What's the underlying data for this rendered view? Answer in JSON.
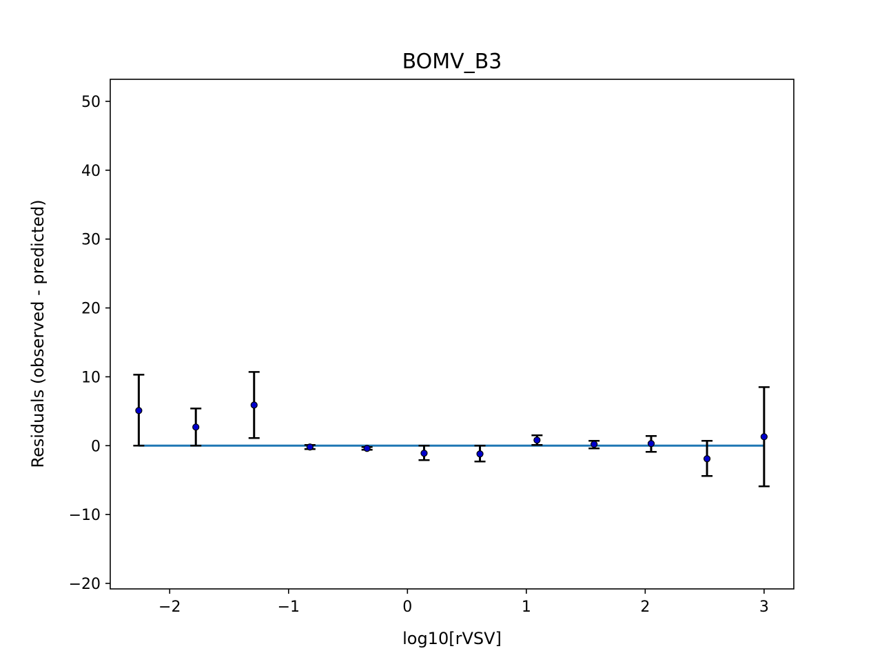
{
  "chart_data": {
    "type": "scatter",
    "title": "BOMV_B3",
    "xlabel": "log10[rVSV]",
    "ylabel": "Residuals (observed - predicted)",
    "xlim": [
      -2.5,
      3.25
    ],
    "ylim": [
      -20.8,
      53.2
    ],
    "xticks": [
      -2,
      -1,
      0,
      1,
      2,
      3
    ],
    "xtick_labels": [
      "−2",
      "−1",
      "0",
      "1",
      "2",
      "3"
    ],
    "yticks": [
      -20,
      -10,
      0,
      10,
      20,
      30,
      40,
      50
    ],
    "ytick_labels": [
      "−20",
      "−10",
      "0",
      "10",
      "20",
      "30",
      "40",
      "50"
    ],
    "grid": false,
    "points": [
      {
        "x": -2.26,
        "y": 5.1,
        "ylow": 0.0,
        "yhigh": 10.3
      },
      {
        "x": -1.78,
        "y": 2.7,
        "ylow": 0.0,
        "yhigh": 5.4
      },
      {
        "x": -1.29,
        "y": 5.9,
        "ylow": 1.1,
        "yhigh": 10.7
      },
      {
        "x": -0.82,
        "y": -0.2,
        "ylow": -0.5,
        "yhigh": 0.1
      },
      {
        "x": -0.34,
        "y": -0.4,
        "ylow": -0.6,
        "yhigh": -0.2
      },
      {
        "x": 0.14,
        "y": -1.1,
        "ylow": -2.1,
        "yhigh": 0.0
      },
      {
        "x": 0.61,
        "y": -1.2,
        "ylow": -2.3,
        "yhigh": 0.0
      },
      {
        "x": 1.09,
        "y": 0.8,
        "ylow": 0.1,
        "yhigh": 1.5
      },
      {
        "x": 1.57,
        "y": 0.2,
        "ylow": -0.4,
        "yhigh": 0.7
      },
      {
        "x": 2.05,
        "y": 0.3,
        "ylow": -0.9,
        "yhigh": 1.4
      },
      {
        "x": 2.52,
        "y": -1.9,
        "ylow": -4.4,
        "yhigh": 0.7
      },
      {
        "x": 3.0,
        "y": 1.3,
        "ylow": -5.9,
        "yhigh": 8.5
      }
    ],
    "reference_line": {
      "y": 0,
      "x_from": -2.26,
      "x_to": 3.0,
      "color": "#1f77b4"
    },
    "marker_color": "#0000cc",
    "errorbar_color": "#000000"
  }
}
